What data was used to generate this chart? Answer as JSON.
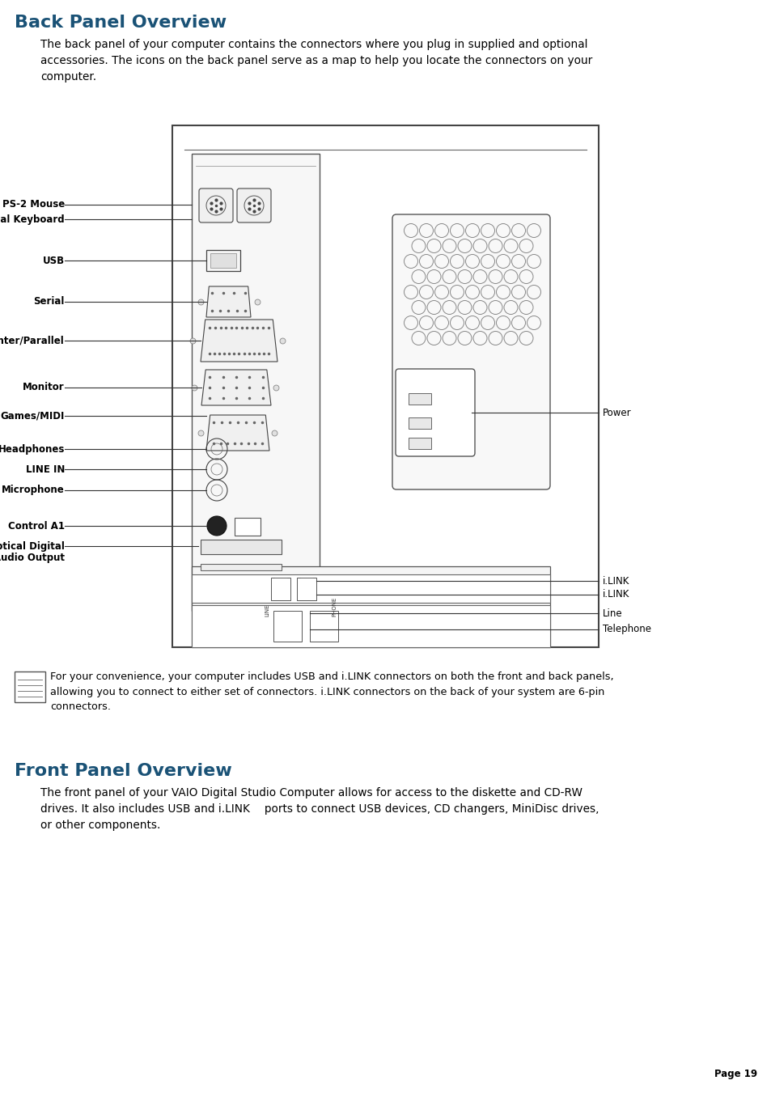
{
  "title1": "Back Panel Overview",
  "title2": "Front Panel Overview",
  "title_color": "#1a5276",
  "body_color": "#000000",
  "bg_color": "#ffffff",
  "para1": "The back panel of your computer contains the connectors where you plug in supplied and optional\naccessories. The icons on the back panel serve as a map to help you locate the connectors on your\ncomputer.",
  "note_text": "For your convenience, your computer includes USB and i.LINK connectors on both the front and back panels,\nallowing you to connect to either set of connectors. i.LINK connectors on the back of your system are 6-pin\nconnectors.",
  "para2": "The front panel of your VAIO Digital Studio Computer allows for access to the diskette and CD-RW\ndrives. It also includes USB and i.LINK  ports to connect USB devices, CD changers, MiniDisc drives,\nor other components.",
  "page_num": "Page 19"
}
